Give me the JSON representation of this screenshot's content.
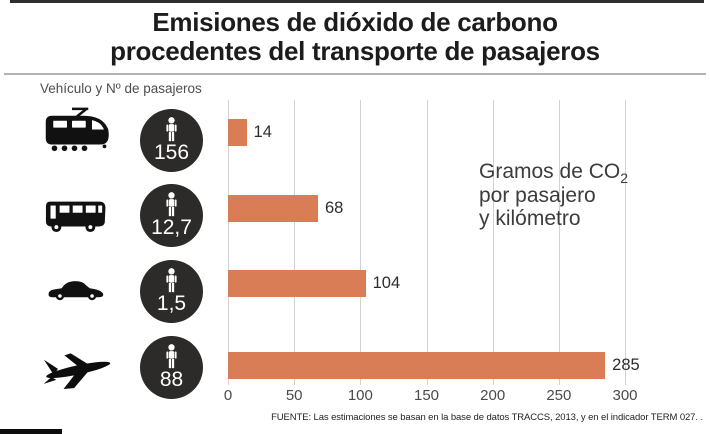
{
  "figure": {
    "title_line1": "Emisiones de dióxido de carbono",
    "title_line2": "procedentes del transporte de pasajeros",
    "y_axis_title": "Vehículo y Nº de pasajeros",
    "unit_note": {
      "prefix": "Gramos de CO",
      "subscript": "2",
      "line2": "por pasajero",
      "line3": "y kilómetro"
    },
    "source": "FUENTE: Las estimaciones se basan en la base de datos TRACCS, 2013, y en el indicador TERM 027. ."
  },
  "chart_data": {
    "type": "bar",
    "orientation": "horizontal",
    "title": "Emisiones de dióxido de carbono procedentes del transporte de pasajeros",
    "xlabel": "Gramos de CO2 por pasajero y kilómetro",
    "ylabel": "Vehículo y Nº de pasajeros",
    "xlim": [
      0,
      300
    ],
    "xticks": [
      0,
      50,
      100,
      150,
      200,
      250,
      300
    ],
    "grid": true,
    "bar_color": "#d87d56",
    "circle_color": "#2d2b29",
    "rows": [
      {
        "vehicle": "tren",
        "passengers_label": "156",
        "value": 14
      },
      {
        "vehicle": "autobus",
        "passengers_label": "12,7",
        "value": 68
      },
      {
        "vehicle": "coche",
        "passengers_label": "1,5",
        "value": 104
      },
      {
        "vehicle": "avion",
        "passengers_label": "88",
        "value": 285
      }
    ]
  }
}
